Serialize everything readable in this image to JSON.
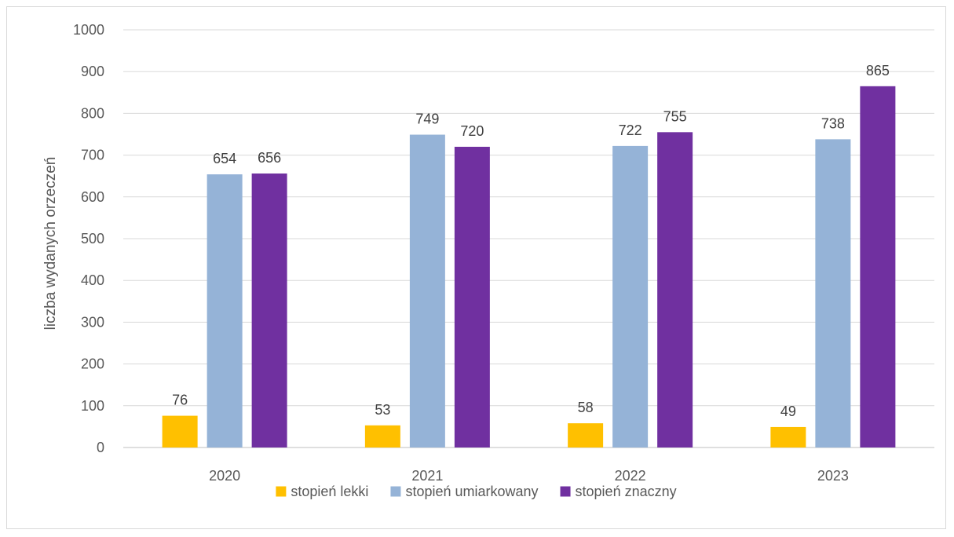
{
  "chart_data": {
    "type": "bar",
    "title": "",
    "xlabel": "",
    "ylabel": "liczba wydanych orzeczeń",
    "ylim": [
      0,
      1000
    ],
    "ytick_step": 100,
    "grid": true,
    "legend_position": "bottom",
    "categories": [
      "2020",
      "2021",
      "2022",
      "2023"
    ],
    "series": [
      {
        "name": "stopień lekki",
        "color": "#ffc000",
        "values": [
          76,
          53,
          58,
          49
        ]
      },
      {
        "name": "stopień umiarkowany",
        "color": "#95b3d7",
        "values": [
          654,
          749,
          722,
          738
        ]
      },
      {
        "name": "stopień znaczny",
        "color": "#7030a0",
        "values": [
          656,
          720,
          755,
          865
        ]
      }
    ]
  }
}
